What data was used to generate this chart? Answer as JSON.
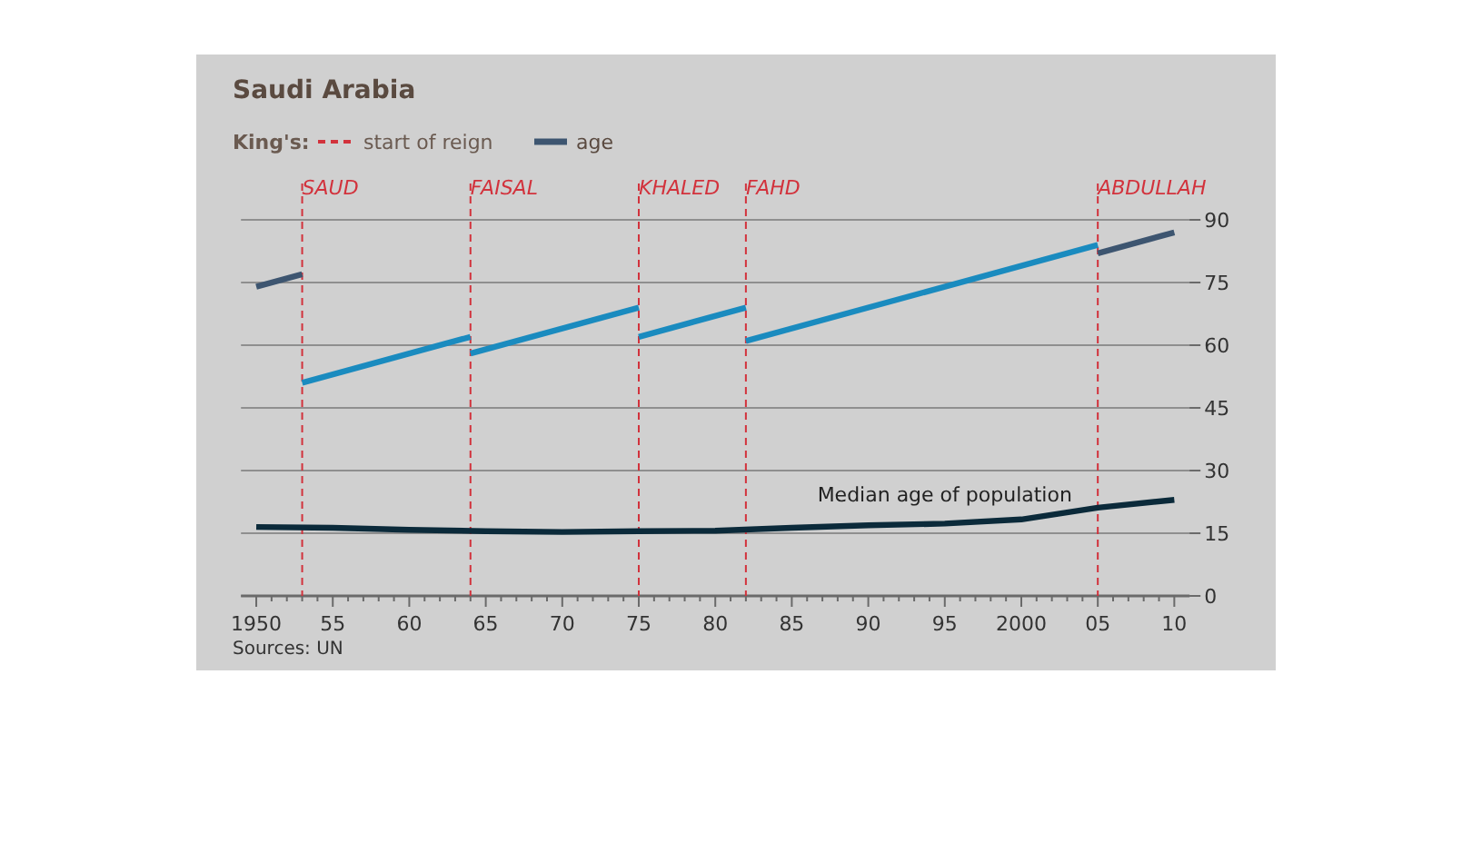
{
  "chart_data": {
    "type": "line",
    "title": "Saudi Arabia",
    "legend_title": "King's:",
    "legend": "top left",
    "grid": "y",
    "line_style": "solid",
    "marker": "none",
    "xlim": [
      1949,
      2011
    ],
    "ylim": [
      0,
      90
    ],
    "yticks": [
      0,
      15,
      30,
      45,
      60,
      75,
      90
    ],
    "xticks": [
      {
        "value": 1950,
        "label": "1950"
      },
      {
        "value": 1951,
        "label": null
      },
      {
        "value": 1952,
        "label": null
      },
      {
        "value": 1953,
        "label": null
      },
      {
        "value": 1954,
        "label": null
      },
      {
        "value": 1955,
        "label": "55"
      },
      {
        "value": 1956,
        "label": null
      },
      {
        "value": 1957,
        "label": null
      },
      {
        "value": 1958,
        "label": null
      },
      {
        "value": 1959,
        "label": null
      },
      {
        "value": 1960,
        "label": "60"
      },
      {
        "value": 1961,
        "label": null
      },
      {
        "value": 1962,
        "label": null
      },
      {
        "value": 1963,
        "label": null
      },
      {
        "value": 1964,
        "label": null
      },
      {
        "value": 1965,
        "label": "65"
      },
      {
        "value": 1966,
        "label": null
      },
      {
        "value": 1967,
        "label": null
      },
      {
        "value": 1968,
        "label": null
      },
      {
        "value": 1969,
        "label": null
      },
      {
        "value": 1970,
        "label": "70"
      },
      {
        "value": 1971,
        "label": null
      },
      {
        "value": 1972,
        "label": null
      },
      {
        "value": 1973,
        "label": null
      },
      {
        "value": 1974,
        "label": null
      },
      {
        "value": 1975,
        "label": "75"
      },
      {
        "value": 1976,
        "label": null
      },
      {
        "value": 1977,
        "label": null
      },
      {
        "value": 1978,
        "label": null
      },
      {
        "value": 1979,
        "label": null
      },
      {
        "value": 1980,
        "label": "80"
      },
      {
        "value": 1981,
        "label": null
      },
      {
        "value": 1982,
        "label": null
      },
      {
        "value": 1983,
        "label": null
      },
      {
        "value": 1984,
        "label": null
      },
      {
        "value": 1985,
        "label": "85"
      },
      {
        "value": 1986,
        "label": null
      },
      {
        "value": 1987,
        "label": null
      },
      {
        "value": 1988,
        "label": null
      },
      {
        "value": 1989,
        "label": null
      },
      {
        "value": 1990,
        "label": "90"
      },
      {
        "value": 1991,
        "label": null
      },
      {
        "value": 1992,
        "label": null
      },
      {
        "value": 1993,
        "label": null
      },
      {
        "value": 1994,
        "label": null
      },
      {
        "value": 1995,
        "label": "95"
      },
      {
        "value": 1996,
        "label": null
      },
      {
        "value": 1997,
        "label": null
      },
      {
        "value": 1998,
        "label": null
      },
      {
        "value": 1999,
        "label": null
      },
      {
        "value": 2000,
        "label": "2000"
      },
      {
        "value": 2001,
        "label": null
      },
      {
        "value": 2002,
        "label": null
      },
      {
        "value": 2003,
        "label": null
      },
      {
        "value": 2004,
        "label": null
      },
      {
        "value": 2005,
        "label": "05"
      },
      {
        "value": 2006,
        "label": null
      },
      {
        "value": 2007,
        "label": null
      },
      {
        "value": 2008,
        "label": null
      },
      {
        "value": 2009,
        "label": null
      },
      {
        "value": 2010,
        "label": "10"
      }
    ],
    "series": [
      {
        "name": "age",
        "color": "#3d5570",
        "x": [
          1950,
          1953
        ],
        "values": [
          74,
          77
        ]
      },
      {
        "color": "#1a8bbf",
        "x": [
          1953,
          1964
        ],
        "values": [
          51,
          62
        ]
      },
      {
        "color": "#1a8bbf",
        "x": [
          1964,
          1975
        ],
        "values": [
          58,
          69
        ]
      },
      {
        "color": "#1a8bbf",
        "x": [
          1975,
          1982
        ],
        "values": [
          62,
          69
        ]
      },
      {
        "color": "#1a8bbf",
        "x": [
          1982,
          2005
        ],
        "values": [
          61,
          84
        ]
      },
      {
        "color": "#3d5570",
        "x": [
          2005,
          2010
        ],
        "values": [
          82,
          87
        ]
      },
      {
        "name": "Median age of population",
        "color": "#0b2a3a",
        "x": [
          1950,
          1955,
          1960,
          1965,
          1970,
          1975,
          1980,
          1985,
          1990,
          1995,
          2000,
          2005,
          2010
        ],
        "values": [
          16.5,
          16.3,
          15.8,
          15.5,
          15.3,
          15.5,
          15.6,
          16.3,
          16.9,
          17.3,
          18.3,
          21.1,
          23.0
        ]
      }
    ],
    "ref_lines": [
      {
        "axis": "x",
        "value": 1953,
        "label": "SAUD",
        "color": "#d2323c",
        "line_style": "dashed"
      },
      {
        "axis": "x",
        "value": 1964,
        "label": "FAISAL",
        "color": "#d2323c",
        "line_style": "dashed"
      },
      {
        "axis": "x",
        "value": 1975,
        "label": "KHALED",
        "color": "#d2323c",
        "line_style": "dashed"
      },
      {
        "axis": "x",
        "value": 1982,
        "label": "FAHD",
        "color": "#d2323c",
        "line_style": "dashed"
      },
      {
        "axis": "x",
        "value": 2005,
        "label": "ABDULLAH",
        "color": "#d2323c",
        "line_style": "dashed"
      }
    ],
    "annotations": [
      "start of reign",
      "Sources: UN"
    ]
  }
}
